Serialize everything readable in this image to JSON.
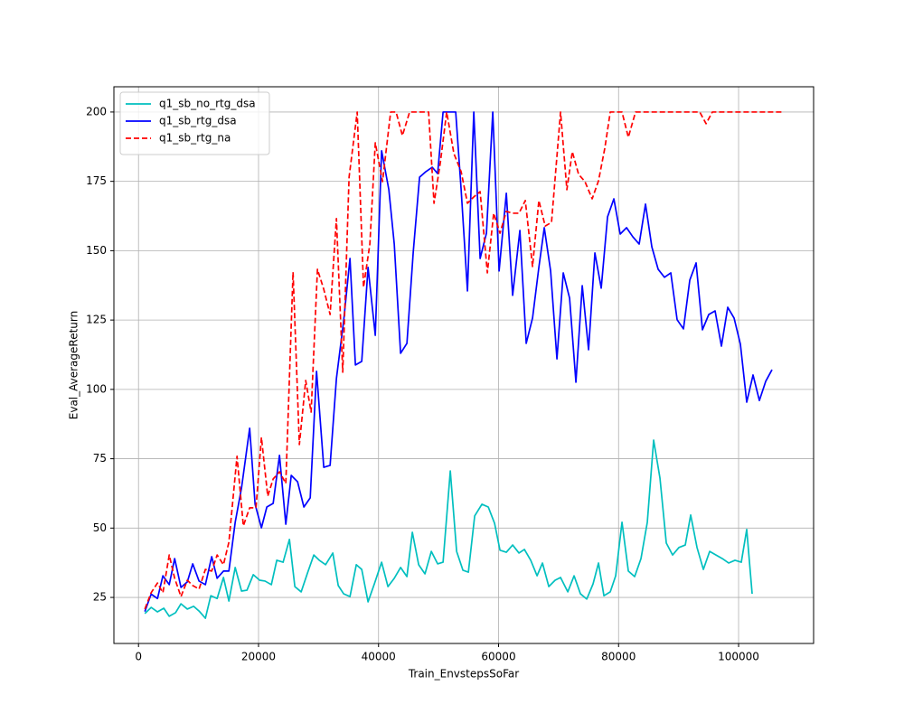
{
  "chart_data": {
    "type": "line",
    "xlabel": "Train_EnvstepsSoFar",
    "ylabel": "Eval_AverageReturn",
    "xlim": [
      -4100,
      112500
    ],
    "ylim": [
      8.4,
      209.1
    ],
    "xticks": [
      0,
      20000,
      40000,
      60000,
      80000,
      100000
    ],
    "yticks": [
      25,
      50,
      75,
      100,
      125,
      150,
      175,
      200
    ],
    "grid": true,
    "legend": "upper-left",
    "series": [
      {
        "name": "q1_sb_no_rtg_dsa",
        "color": "#00bfbf",
        "linestyle": "solid",
        "x": [
          1054,
          2108,
          3163,
          4217,
          5120,
          6175,
          7078,
          8133,
          9187,
          10090,
          11145,
          12048,
          13102,
          14157,
          15060,
          16114,
          17169,
          18072,
          19127,
          20181,
          21084,
          22139,
          23042,
          24096,
          25151,
          26054,
          27108,
          28163,
          29217,
          30120,
          31175,
          32380,
          33283,
          34187,
          35241,
          36295,
          37199,
          38253,
          39307,
          40512,
          41566,
          42620,
          43675,
          44729,
          45633,
          46687,
          47741,
          48795,
          49849,
          50753,
          51958,
          53012,
          54066,
          54970,
          56024,
          57229,
          58283,
          59337,
          60241,
          61295,
          62349,
          63404,
          64307,
          65361,
          66416,
          67319,
          68373,
          69428,
          70331,
          71536,
          72590,
          73645,
          74699,
          75753,
          76657,
          77560,
          78614,
          79518,
          80572,
          81627,
          82681,
          83735,
          84789,
          85843,
          86898,
          87952,
          89006,
          90060,
          91114,
          92018,
          93072,
          94127,
          95181,
          96235,
          97289,
          98343,
          99398,
          100452,
          101355,
          102259
        ],
        "values": [
          19.2,
          21.4,
          19.8,
          21.1,
          18.2,
          19.5,
          22.7,
          20.8,
          21.8,
          20.1,
          17.5,
          25.6,
          24.6,
          32.2,
          23.7,
          35.8,
          27.3,
          27.6,
          33.2,
          31.2,
          30.9,
          29.6,
          38.4,
          37.7,
          45.9,
          28.9,
          27.0,
          33.8,
          40.3,
          38.4,
          36.8,
          41.0,
          29.3,
          26.3,
          25.3,
          36.8,
          35.1,
          23.4,
          29.9,
          37.7,
          28.9,
          31.9,
          35.8,
          32.5,
          48.5,
          36.8,
          33.5,
          41.6,
          37.1,
          37.7,
          70.6,
          41.6,
          34.8,
          34.1,
          54.4,
          58.6,
          57.6,
          51.7,
          42.0,
          41.3,
          43.9,
          41.0,
          42.3,
          38.4,
          32.8,
          37.4,
          28.9,
          31.2,
          32.2,
          27.0,
          32.8,
          26.3,
          24.4,
          29.9,
          37.4,
          25.6,
          27.0,
          32.8,
          52.1,
          34.5,
          32.5,
          39.0,
          52.1,
          81.7,
          68.0,
          44.6,
          40.3,
          43.0,
          43.9,
          54.7,
          43.0,
          35.1,
          41.6,
          40.3,
          39.0,
          37.4,
          38.4,
          37.7,
          49.5,
          26.3
        ]
      },
      {
        "name": "q1_sb_rtg_dsa",
        "color": "#0000ff",
        "linestyle": "solid",
        "x": [
          1054,
          2108,
          3163,
          4066,
          5120,
          6024,
          7078,
          8133,
          9036,
          10090,
          11145,
          12199,
          13102,
          14157,
          15060,
          16114,
          17169,
          18524,
          19428,
          20482,
          21386,
          22440,
          23494,
          24548,
          25452,
          26506,
          27560,
          28614,
          29669,
          30873,
          31928,
          32982,
          34187,
          35241,
          36145,
          37199,
          38253,
          39458,
          40512,
          41717,
          42620,
          43675,
          44729,
          45783,
          46837,
          47892,
          48946,
          49849,
          50753,
          51807,
          52861,
          53765,
          54819,
          55873,
          56928,
          57982,
          59036,
          60090,
          61295,
          62349,
          63554,
          64608,
          65663,
          66717,
          67620,
          68675,
          69729,
          70783,
          71837,
          72892,
          73946,
          75000,
          76054,
          77108,
          78163,
          79217,
          80271,
          81325,
          82380,
          83434,
          84488,
          85542,
          86596,
          87651,
          88705,
          89759,
          90813,
          91867,
          92922,
          93976,
          95030,
          96084,
          97139,
          98193,
          99247,
          100301,
          101355,
          102410,
          103464,
          104518,
          105572
        ],
        "values": [
          19.9,
          26.2,
          24.6,
          32.8,
          29.6,
          39.0,
          28.6,
          30.6,
          37.1,
          30.9,
          29.6,
          39.7,
          31.9,
          34.5,
          34.5,
          52.1,
          64.5,
          86.0,
          58.6,
          50.1,
          57.6,
          58.9,
          76.2,
          51.4,
          69.0,
          66.7,
          57.6,
          60.9,
          106.5,
          71.9,
          72.6,
          103.9,
          124.7,
          147.2,
          108.8,
          110.1,
          144.0,
          119.5,
          186.0,
          172.0,
          152.4,
          113.0,
          116.6,
          149.5,
          176.5,
          178.5,
          180.1,
          177.8,
          200,
          200,
          200,
          172.0,
          135.5,
          200,
          147.2,
          156.3,
          200,
          142.7,
          170.7,
          133.9,
          157.3,
          116.6,
          125.7,
          144.0,
          158.3,
          142.7,
          111.0,
          142.0,
          132.9,
          102.6,
          137.4,
          114.3,
          149.2,
          136.5,
          162.2,
          168.7,
          156.0,
          158.3,
          155.0,
          152.4,
          166.8,
          151.4,
          143.3,
          140.4,
          142.0,
          125.1,
          121.8,
          139.4,
          145.6,
          121.5,
          127.0,
          128.3,
          115.6,
          129.6,
          125.7,
          116.3,
          95.4,
          105.2,
          96.0,
          102.9,
          107.1
        ]
      },
      {
        "name": "q1_sb_rtg_na",
        "color": "#ff0000",
        "linestyle": "dashed",
        "x": [
          1054,
          2108,
          3163,
          4066,
          5120,
          6024,
          7078,
          8133,
          9036,
          10090,
          11145,
          12199,
          13102,
          14157,
          15060,
          16416,
          17470,
          18524,
          19578,
          20482,
          21536,
          22440,
          23494,
          24548,
          25753,
          26807,
          27861,
          28765,
          29819,
          30873,
          31928,
          32982,
          34036,
          35090,
          36446,
          37500,
          38554,
          39458,
          40663,
          42018,
          42922,
          43976,
          45181,
          46235,
          47289,
          48343,
          49247,
          50301,
          51355,
          52560,
          53765,
          54819,
          55873,
          56928,
          58133,
          59187,
          60241,
          61295,
          62349,
          63404,
          64458,
          65663,
          66717,
          67771,
          68825,
          70331,
          71386,
          72289,
          73343,
          74398,
          75602,
          76657,
          77711,
          78614,
          80572,
          81627,
          82831,
          93524,
          94578,
          95633,
          107229
        ],
        "values": [
          20.8,
          26.7,
          30.2,
          26.7,
          40.3,
          31.9,
          25.3,
          31.2,
          29.3,
          28.0,
          35.1,
          34.5,
          40.3,
          36.8,
          44.9,
          75.9,
          50.8,
          57.3,
          57.3,
          82.7,
          61.5,
          67.7,
          70.3,
          66.1,
          142.3,
          80.1,
          103.2,
          91.8,
          143.3,
          136.1,
          127.0,
          161.6,
          106.2,
          176.5,
          200,
          136.8,
          152.4,
          188.9,
          174.9,
          200,
          200,
          191.5,
          200,
          200,
          200,
          200,
          167.1,
          181.8,
          200,
          185.0,
          178.5,
          167.1,
          169.4,
          171.3,
          142.0,
          163.5,
          156.3,
          164.2,
          163.5,
          163.5,
          168.1,
          144.3,
          168.1,
          158.9,
          160.2,
          200,
          172.0,
          185.7,
          177.5,
          174.9,
          168.7,
          175.2,
          187.0,
          200,
          200,
          190.9,
          200,
          200,
          195.8,
          200,
          200
        ]
      }
    ]
  }
}
